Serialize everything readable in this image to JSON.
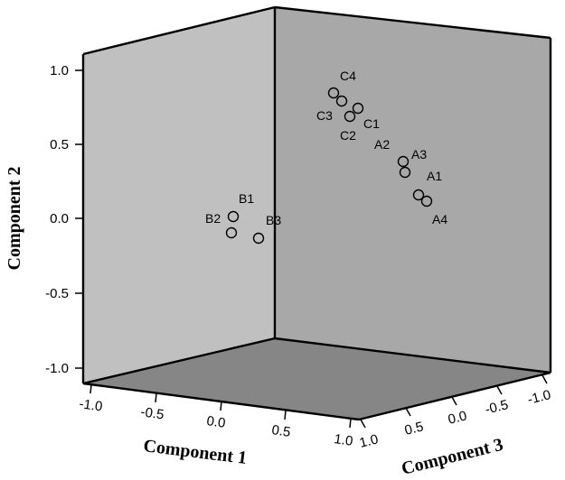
{
  "chart_data": {
    "type": "scatter",
    "xlabel": "Component 1",
    "ylabel": "Component 2",
    "zlabel": "Component 3",
    "xlim": [
      -1.0,
      1.0
    ],
    "ylim": [
      -1.0,
      1.0
    ],
    "zlim": [
      -1.0,
      1.0
    ],
    "x_ticks": [
      "-1.0",
      "-0.5",
      "0.0",
      "0.5",
      "1.0"
    ],
    "y_ticks": [
      "-1.0",
      "-0.5",
      "0.0",
      "0.5",
      "1.0"
    ],
    "z_ticks": [
      "1.0",
      "0.5",
      "0.0",
      "-0.5",
      "-1.0"
    ],
    "points": [
      {
        "label": "A1",
        "x": 0.9,
        "y": 0.15,
        "z": -0.45
      },
      {
        "label": "A2",
        "x": 0.9,
        "y": 0.43,
        "z": -0.05
      },
      {
        "label": "A3",
        "x": 0.9,
        "y": 0.35,
        "z": -0.05
      },
      {
        "label": "A4",
        "x": 0.9,
        "y": 0.13,
        "z": -0.5
      },
      {
        "label": "B1",
        "x": 0.0,
        "y": 0.02,
        "z": 0.05
      },
      {
        "label": "B2",
        "x": 0.0,
        "y": -0.1,
        "z": 0.05
      },
      {
        "label": "B3",
        "x": 0.2,
        "y": -0.1,
        "z": 0.3
      },
      {
        "label": "C1",
        "x": 0.3,
        "y": 0.62,
        "z": -0.65
      },
      {
        "label": "C2",
        "x": 0.3,
        "y": 0.54,
        "z": -0.5
      },
      {
        "label": "C3",
        "x": 0.2,
        "y": 0.63,
        "z": -0.45
      },
      {
        "label": "C4",
        "x": 0.2,
        "y": 0.7,
        "z": -0.3
      }
    ],
    "grid": false,
    "legend": "none"
  },
  "colors": {
    "back_wall": "#c0c0c0",
    "side_wall": "#a8a8a8",
    "floor": "#868686",
    "outline": "#000000"
  }
}
